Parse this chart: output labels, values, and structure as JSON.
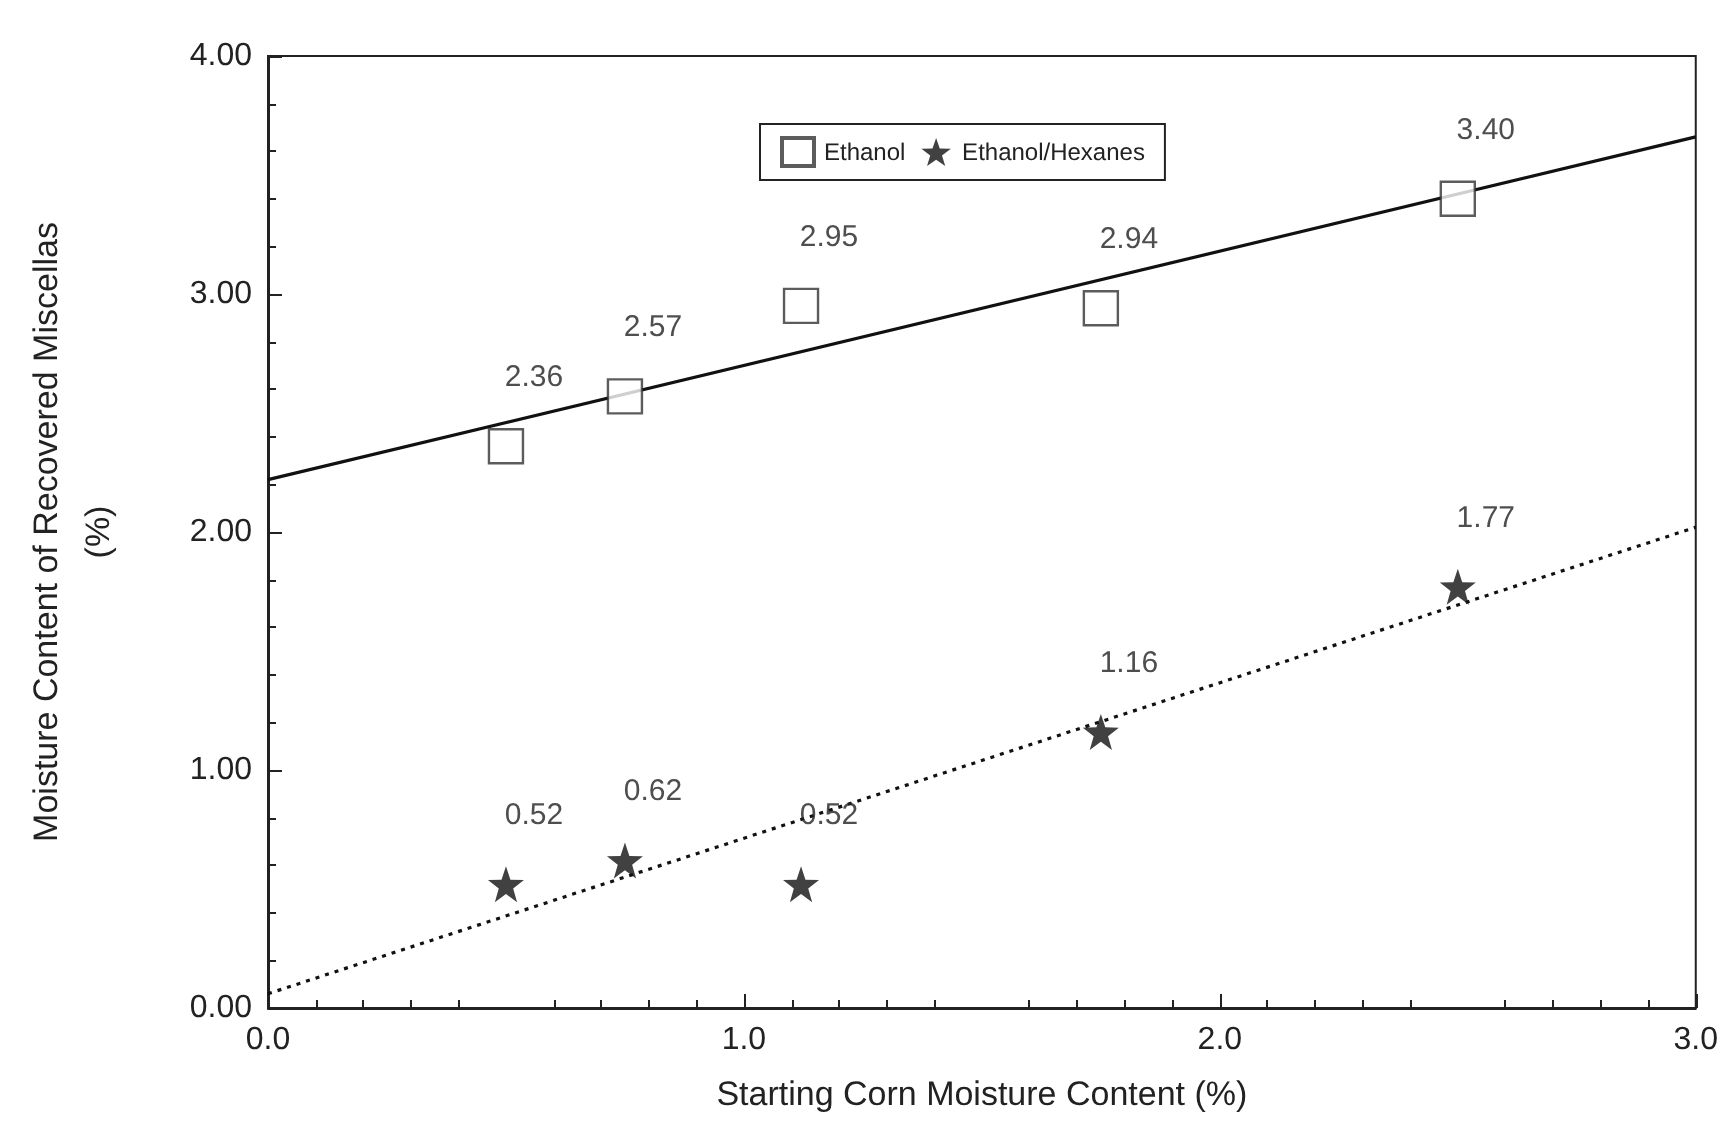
{
  "chart_data": {
    "type": "scatter",
    "xlabel": "Starting Corn Moisture Content (%)",
    "ylabel": "Moisture Content of Recovered Miscellas\n(%)",
    "xlim": [
      0,
      3
    ],
    "xticks": [
      {
        "value": 0,
        "label": "0.0"
      },
      {
        "value": 1,
        "label": "1.0"
      },
      {
        "value": 2,
        "label": "2.0"
      },
      {
        "value": 3,
        "label": "3.0"
      }
    ],
    "ylim": [
      0,
      4
    ],
    "yticks": [
      {
        "value": 0,
        "label": "0.00"
      },
      {
        "value": 1,
        "label": "1.00"
      },
      {
        "value": 2,
        "label": "2.00"
      },
      {
        "value": 3,
        "label": "3.00"
      },
      {
        "value": 4,
        "label": "4.00"
      }
    ],
    "grid": false,
    "legend": "top",
    "series": [
      {
        "name": "Ethanol",
        "marker": "square",
        "color": "#333333",
        "x": [
          0.5,
          0.75,
          1.12,
          1.75,
          2.5
        ],
        "values": [
          2.36,
          2.57,
          2.95,
          2.94,
          3.4
        ],
        "value_labels": [
          "2.36",
          "2.57",
          "2.95",
          "2.94",
          "3.40"
        ]
      },
      {
        "name": "Ethanol/Hexanes",
        "marker": "star",
        "color": "#111111",
        "x": [
          0.5,
          0.75,
          1.12,
          1.75,
          2.5
        ],
        "values": [
          0.52,
          0.62,
          0.52,
          1.16,
          1.77
        ],
        "value_labels": [
          "0.52",
          "0.62",
          "0.52",
          "1.16",
          "1.77"
        ]
      },
      {
        "type": "line",
        "marker": "none",
        "line_style": "solid",
        "color": "#111111",
        "x": [
          0,
          3
        ],
        "values": [
          2.22,
          3.66
        ]
      },
      {
        "type": "line",
        "marker": "none",
        "line_style": "dotted",
        "color": "#111111",
        "x": [
          0,
          3
        ],
        "values": [
          0.06,
          2.02
        ]
      }
    ]
  }
}
